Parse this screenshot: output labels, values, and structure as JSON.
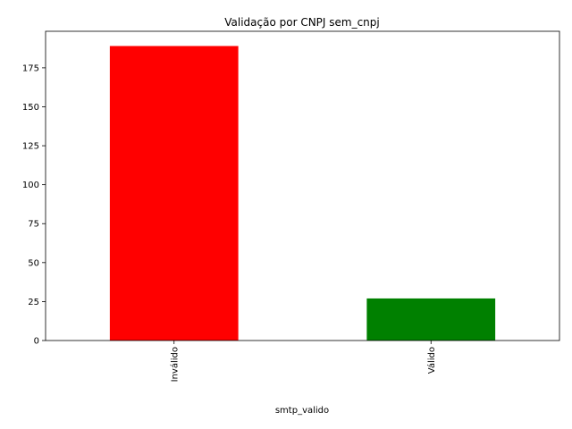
{
  "chart_data": {
    "type": "bar",
    "title": "Validação por CNPJ sem_cnpj",
    "xlabel": "smtp_valido",
    "ylabel": "",
    "categories": [
      "Inválido",
      "Válido"
    ],
    "values": [
      189,
      27
    ],
    "colors": [
      "#ff0000",
      "#008000"
    ],
    "ylim": [
      0,
      198.45
    ],
    "yticks": [
      0,
      25,
      50,
      75,
      100,
      125,
      150,
      175
    ],
    "grid": false,
    "legend": "none"
  }
}
